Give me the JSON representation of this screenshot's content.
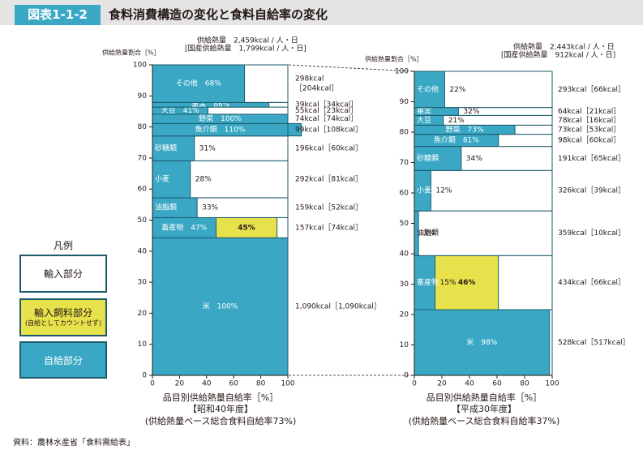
{
  "header": {
    "figure_id": "図表1-1-2",
    "title": "食料消費構造の変化と食料自給率の変化"
  },
  "legend": {
    "title": "凡例",
    "import_label": "輸入部分",
    "feed_label": "輸入飼料部分",
    "feed_note": "(自給としてカウントせず)",
    "self_label": "自給部分"
  },
  "source": "資料：農林水産省「食料需給表」",
  "colors": {
    "self": "#3aa8c5",
    "import": "#ffffff",
    "feed": "#e7e14b",
    "border": "#1d5a6c"
  },
  "chart_data": [
    {
      "type": "bar",
      "subtype": "variable-width stacked (mosaic)",
      "y_label": "供給熱量割合［%］",
      "x_label": "品目別供給熱量自給率［%］",
      "period": "【昭和40年度】",
      "caption": "(供給熱量ベース総合食料自給率73%)",
      "total_supply": "供給熱量　2,459kcal / 人・日",
      "domestic_supply": "[国産供給熱量　1,799kcal / 人・日]",
      "xlim": [
        0,
        100
      ],
      "ylim": [
        0,
        100
      ],
      "x_ticks": [
        0,
        20,
        40,
        60,
        80,
        100
      ],
      "y_ticks": [
        0,
        10,
        20,
        30,
        40,
        50,
        60,
        70,
        80,
        90,
        100
      ],
      "items": [
        {
          "name": "米",
          "bar_label": "100%",
          "share_start": 0,
          "share_end": 44.3,
          "self_rate": 100,
          "feed_rate": 0,
          "kcal_label": "1,090kcal［1,090kcal］"
        },
        {
          "name": "畜産物",
          "bar_label": "47%",
          "share_start": 44.3,
          "share_end": 50.8,
          "self_rate": 47,
          "feed_rate": 45,
          "feed_label": "45%",
          "kcal_label": "157kcal［74kcal］"
        },
        {
          "name": "油脂類",
          "bar_label": "33%",
          "share_start": 50.8,
          "share_end": 57.2,
          "self_rate": 33,
          "feed_rate": 0,
          "kcal_label": "159kcal［52kcal］"
        },
        {
          "name": "小麦",
          "bar_label": "28%",
          "share_start": 57.2,
          "share_end": 69.1,
          "self_rate": 28,
          "feed_rate": 0,
          "kcal_label": "292kcal［81kcal］"
        },
        {
          "name": "砂糖類",
          "bar_label": "31%",
          "share_start": 69.1,
          "share_end": 77.1,
          "self_rate": 31,
          "feed_rate": 0,
          "kcal_label": "196kcal［60kcal］"
        },
        {
          "name": "魚介類",
          "bar_label": "110%",
          "share_start": 77.1,
          "share_end": 81.1,
          "self_rate": 110,
          "feed_rate": 0,
          "kcal_label": "99kcal［108kcal］"
        },
        {
          "name": "野菜",
          "bar_label": "100%",
          "share_start": 81.1,
          "share_end": 84.1,
          "self_rate": 100,
          "feed_rate": 0,
          "kcal_label": "74kcal［74kcal］"
        },
        {
          "name": "大豆",
          "bar_label": "41%",
          "share_start": 84.1,
          "share_end": 86.4,
          "self_rate": 41,
          "feed_rate": 0,
          "kcal_label": "55kcal［23kcal］"
        },
        {
          "name": "果実",
          "bar_label": "86%",
          "share_start": 86.4,
          "share_end": 87.9,
          "self_rate": 86,
          "feed_rate": 0,
          "kcal_label": "39kcal［34kcal］"
        },
        {
          "name": "その他",
          "bar_label": "68%",
          "share_start": 87.9,
          "share_end": 100,
          "self_rate": 68,
          "feed_rate": 0,
          "kcal_label": "298kcal\n［204kcal］"
        }
      ]
    },
    {
      "type": "bar",
      "subtype": "variable-width stacked (mosaic)",
      "y_label": "供給熱量割合［%］",
      "x_label": "品目別供給熱量自給率［%］",
      "period": "【平成30年度】",
      "caption": "(供給熱量ベース総合食料自給率37%)",
      "total_supply": "供給熱量　2,443kcal / 人・日",
      "domestic_supply": "[国産供給熱量　912kcal / 人・日]",
      "xlim": [
        0,
        100
      ],
      "ylim": [
        0,
        100
      ],
      "x_ticks": [
        0,
        20,
        40,
        60,
        80,
        100
      ],
      "y_ticks": [
        0,
        10,
        20,
        30,
        40,
        50,
        60,
        70,
        80,
        90,
        100
      ],
      "items": [
        {
          "name": "米",
          "bar_label": "98%",
          "share_start": 0,
          "share_end": 21.6,
          "self_rate": 98,
          "feed_rate": 0,
          "kcal_label": "528kcal［517kcal］"
        },
        {
          "name": "畜産物",
          "bar_label": "15%",
          "share_start": 21.6,
          "share_end": 39.4,
          "self_rate": 15,
          "feed_rate": 46,
          "feed_label": "46%",
          "kcal_label": "434kcal［66kcal］"
        },
        {
          "name": "油脂類",
          "bar_label": "3%",
          "share_start": 39.4,
          "share_end": 54.1,
          "self_rate": 3,
          "feed_rate": 0,
          "kcal_label": "359kcal［10kcal］"
        },
        {
          "name": "小麦",
          "bar_label": "12%",
          "share_start": 54.1,
          "share_end": 67.4,
          "self_rate": 12,
          "feed_rate": 0,
          "kcal_label": "326kcal［39kcal］"
        },
        {
          "name": "砂糖類",
          "bar_label": "34%",
          "share_start": 67.4,
          "share_end": 75.3,
          "self_rate": 34,
          "feed_rate": 0,
          "kcal_label": "191kcal［65kcal］"
        },
        {
          "name": "魚介類",
          "bar_label": "61%",
          "share_start": 75.3,
          "share_end": 79.3,
          "self_rate": 61,
          "feed_rate": 0,
          "kcal_label": "98kcal［60kcal］"
        },
        {
          "name": "野菜",
          "bar_label": "73%",
          "share_start": 79.3,
          "share_end": 82.3,
          "self_rate": 73,
          "feed_rate": 0,
          "kcal_label": "73kcal［53kcal］"
        },
        {
          "name": "大豆",
          "bar_label": "21%",
          "share_start": 82.3,
          "share_end": 85.5,
          "self_rate": 21,
          "feed_rate": 0,
          "kcal_label": "78kcal［16kcal］"
        },
        {
          "name": "果実",
          "bar_label": "32%",
          "share_start": 85.5,
          "share_end": 88.1,
          "self_rate": 32,
          "feed_rate": 0,
          "kcal_label": "64kcal［21kcal］"
        },
        {
          "name": "その他",
          "bar_label": "22%",
          "share_start": 88.1,
          "share_end": 100,
          "self_rate": 22,
          "feed_rate": 0,
          "kcal_label": "293kcal［66kcal］"
        }
      ]
    }
  ]
}
